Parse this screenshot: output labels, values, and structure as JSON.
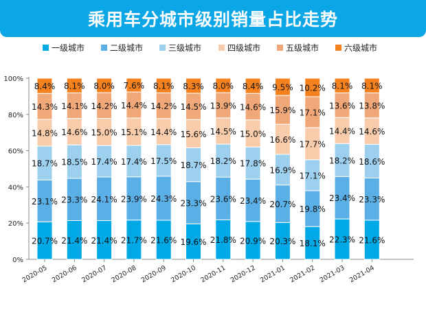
{
  "chart_data": {
    "type": "bar",
    "stacked": true,
    "title": "乘用车分城市级别销量占比走势",
    "categories": [
      "2020-05",
      "2020-06",
      "2020-07",
      "2020-08",
      "2020-09",
      "2020-10",
      "2020-11",
      "2020-12",
      "2021-01",
      "2021-02",
      "2021-03",
      "2021-04"
    ],
    "series": [
      {
        "name": "一级城市",
        "color": "#00a8e6",
        "values": [
          20.7,
          21.4,
          21.4,
          21.7,
          21.6,
          19.6,
          21.8,
          20.9,
          20.3,
          18.1,
          22.3,
          21.6
        ]
      },
      {
        "name": "二级城市",
        "color": "#5ab0e6",
        "values": [
          23.1,
          23.3,
          24.1,
          23.9,
          24.3,
          23.3,
          23.6,
          23.4,
          20.7,
          19.8,
          23.4,
          23.3
        ]
      },
      {
        "name": "三级城市",
        "color": "#9dd0ee",
        "values": [
          18.7,
          18.5,
          17.4,
          17.4,
          17.5,
          18.7,
          18.2,
          17.8,
          16.9,
          17.1,
          18.2,
          18.6
        ]
      },
      {
        "name": "四级城市",
        "color": "#f8ccaa",
        "values": [
          14.8,
          14.6,
          15.0,
          15.1,
          14.4,
          15.6,
          14.5,
          15.0,
          16.6,
          17.7,
          14.4,
          14.6
        ]
      },
      {
        "name": "五级城市",
        "color": "#f0a878",
        "values": [
          14.3,
          14.1,
          14.2,
          14.4,
          14.2,
          14.5,
          13.9,
          14.6,
          15.9,
          17.1,
          13.6,
          13.8
        ]
      },
      {
        "name": "六级城市",
        "color": "#f5821f",
        "values": [
          8.4,
          8.1,
          8.0,
          7.6,
          8.1,
          8.3,
          8.0,
          8.4,
          9.5,
          10.2,
          8.1,
          8.1
        ]
      }
    ],
    "yticks": [
      "0%",
      "20%",
      "40%",
      "60%",
      "80%",
      "100%"
    ],
    "ylim": [
      0,
      100
    ],
    "legend": "top",
    "grid": false
  }
}
